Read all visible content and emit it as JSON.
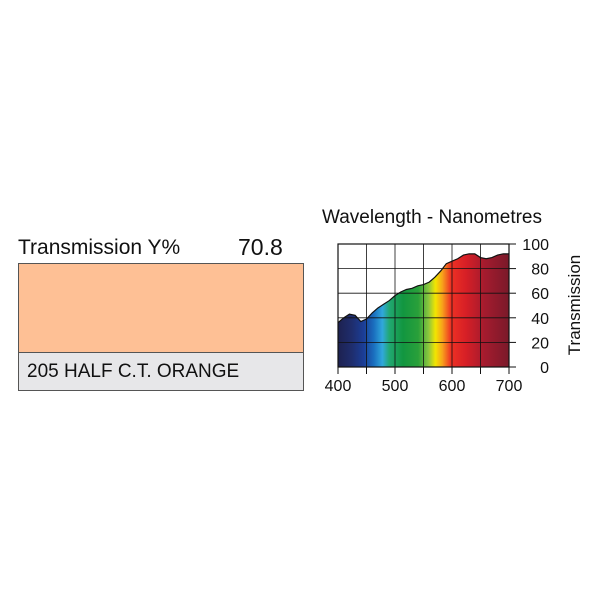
{
  "swatch": {
    "title": "Transmission Y%",
    "value": "70.8",
    "name": "205 HALF C.T. ORANGE",
    "color": "#fec095"
  },
  "chart_data": {
    "type": "area",
    "title": "Wavelength - Nanometres",
    "xlabel": "",
    "ylabel": "Transmission",
    "xlim": [
      400,
      700
    ],
    "ylim": [
      0,
      100
    ],
    "xticks": [
      "400",
      "500",
      "600",
      "700"
    ],
    "yticks": [
      "0",
      "20",
      "40",
      "60",
      "80",
      "100"
    ],
    "grid": true,
    "fill": "visible spectrum gradient",
    "x": [
      400,
      410,
      420,
      430,
      440,
      450,
      460,
      470,
      480,
      490,
      500,
      510,
      520,
      530,
      540,
      550,
      560,
      570,
      580,
      590,
      600,
      610,
      620,
      630,
      640,
      650,
      660,
      670,
      680,
      690,
      700
    ],
    "y": [
      36,
      40,
      43,
      42,
      37,
      39,
      44,
      48,
      51,
      54,
      58,
      61,
      63,
      64,
      66,
      67,
      69,
      73,
      78,
      84,
      86,
      88,
      91,
      92,
      92,
      89,
      88,
      89,
      91,
      92,
      92
    ]
  }
}
